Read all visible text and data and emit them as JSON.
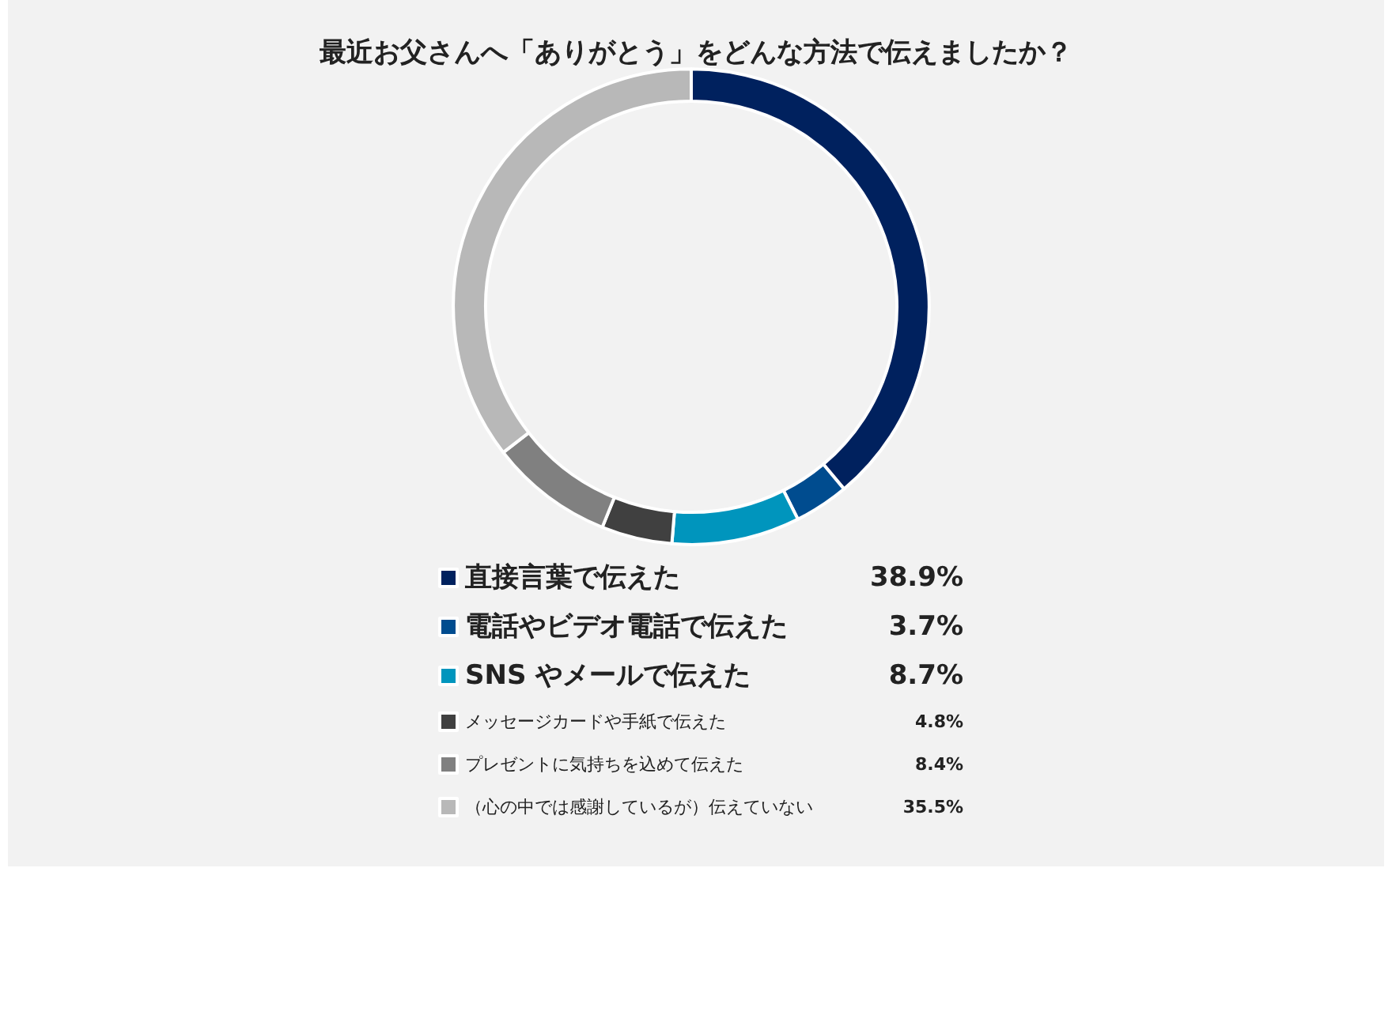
{
  "chart_data": {
    "type": "donut",
    "title": "最近お父さんへ「ありがとう」をどんな方法で伝えましたか？",
    "categories": [
      "直接言葉で伝えた",
      "電話やビデオ電話で伝えた",
      "SNS やメールで伝えた",
      "メッセージカードや手紙で伝えた",
      "プレゼントに気持ちを込めて伝えた",
      "（心の中では感謝しているが）伝えていない"
    ],
    "values": [
      38.9,
      3.7,
      8.7,
      4.8,
      8.4,
      35.5
    ],
    "colors": [
      "#00215e",
      "#004c8f",
      "#0095bd",
      "#404040",
      "#808080",
      "#b8b8b8"
    ],
    "value_labels": [
      "38.9%",
      "3.7%",
      "8.7%",
      "4.8%",
      "8.4%",
      "35.5%"
    ],
    "legend": "bottom"
  }
}
